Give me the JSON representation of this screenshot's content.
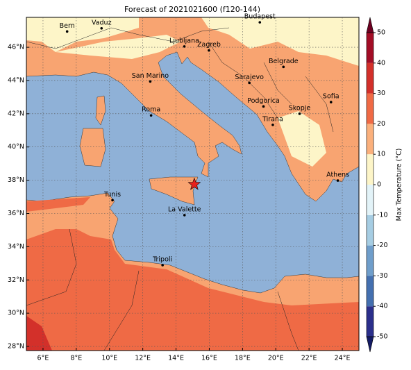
{
  "title": "Forecast of 2021021600 (f120-144)",
  "map": {
    "lonlim": [
      5,
      25
    ],
    "latlim": [
      27.75,
      47.8
    ],
    "lonticks": [
      {
        "value": 6,
        "label": "6°E"
      },
      {
        "value": 8,
        "label": "8°E"
      },
      {
        "value": 10,
        "label": "10°E"
      },
      {
        "value": 12,
        "label": "12°E"
      },
      {
        "value": 14,
        "label": "14°E"
      },
      {
        "value": 16,
        "label": "16°E"
      },
      {
        "value": 18,
        "label": "18°E"
      },
      {
        "value": 20,
        "label": "20°E"
      },
      {
        "value": 22,
        "label": "22°E"
      },
      {
        "value": 24,
        "label": "24°E"
      }
    ],
    "latticks": [
      {
        "value": 28,
        "label": "28°N"
      },
      {
        "value": 30,
        "label": "30°N"
      },
      {
        "value": 32,
        "label": "32°N"
      },
      {
        "value": 34,
        "label": "34°N"
      },
      {
        "value": 36,
        "label": "36°N"
      },
      {
        "value": 38,
        "label": "38°N"
      },
      {
        "value": 40,
        "label": "40°N"
      },
      {
        "value": 42,
        "label": "42°N"
      },
      {
        "value": 44,
        "label": "44°N"
      },
      {
        "value": 46,
        "label": "46°N"
      }
    ],
    "grid": true,
    "cities": [
      {
        "name": "Bern",
        "lon": 7.45,
        "lat": 46.95
      },
      {
        "name": "Vaduz",
        "lon": 9.52,
        "lat": 47.14
      },
      {
        "name": "Budapest",
        "lon": 19.04,
        "lat": 47.5
      },
      {
        "name": "Ljubljana",
        "lon": 14.5,
        "lat": 46.05
      },
      {
        "name": "Zagreb",
        "lon": 15.98,
        "lat": 45.81
      },
      {
        "name": "Belgrade",
        "lon": 20.46,
        "lat": 44.82
      },
      {
        "name": "San Marino",
        "lon": 12.45,
        "lat": 43.94
      },
      {
        "name": "Sarajevo",
        "lon": 18.41,
        "lat": 43.86
      },
      {
        "name": "Sofia",
        "lon": 23.32,
        "lat": 42.7
      },
      {
        "name": "Roma",
        "lon": 12.5,
        "lat": 41.9
      },
      {
        "name": "Podgorica",
        "lon": 19.26,
        "lat": 42.44
      },
      {
        "name": "Skopje",
        "lon": 21.43,
        "lat": 42.0
      },
      {
        "name": "Tirana",
        "lon": 19.82,
        "lat": 41.33
      },
      {
        "name": "Athens",
        "lon": 23.73,
        "lat": 37.98
      },
      {
        "name": "Tunis",
        "lon": 10.18,
        "lat": 36.8
      },
      {
        "name": "La Valette",
        "lon": 14.51,
        "lat": 35.9
      },
      {
        "name": "Tripoli",
        "lon": 13.19,
        "lat": 32.89
      }
    ],
    "marker": {
      "lon": 15.1,
      "lat": 37.75,
      "color": "#e8201c"
    }
  },
  "colorbar": {
    "label": "Max Temperature (°C)",
    "lim": [
      -50,
      50
    ],
    "ticks": [
      -50,
      -40,
      -30,
      -20,
      -10,
      0,
      10,
      20,
      30,
      40,
      50
    ],
    "colors": [
      "#2b2f8c",
      "#4470b0",
      "#6f9ecb",
      "#a6cde3",
      "#e3f3f8",
      "#fdf5c8",
      "#fbb07c",
      "#f06a45",
      "#d3302a",
      "#a30d26"
    ],
    "under_color": "#141b66",
    "over_color": "#6e0021"
  }
}
